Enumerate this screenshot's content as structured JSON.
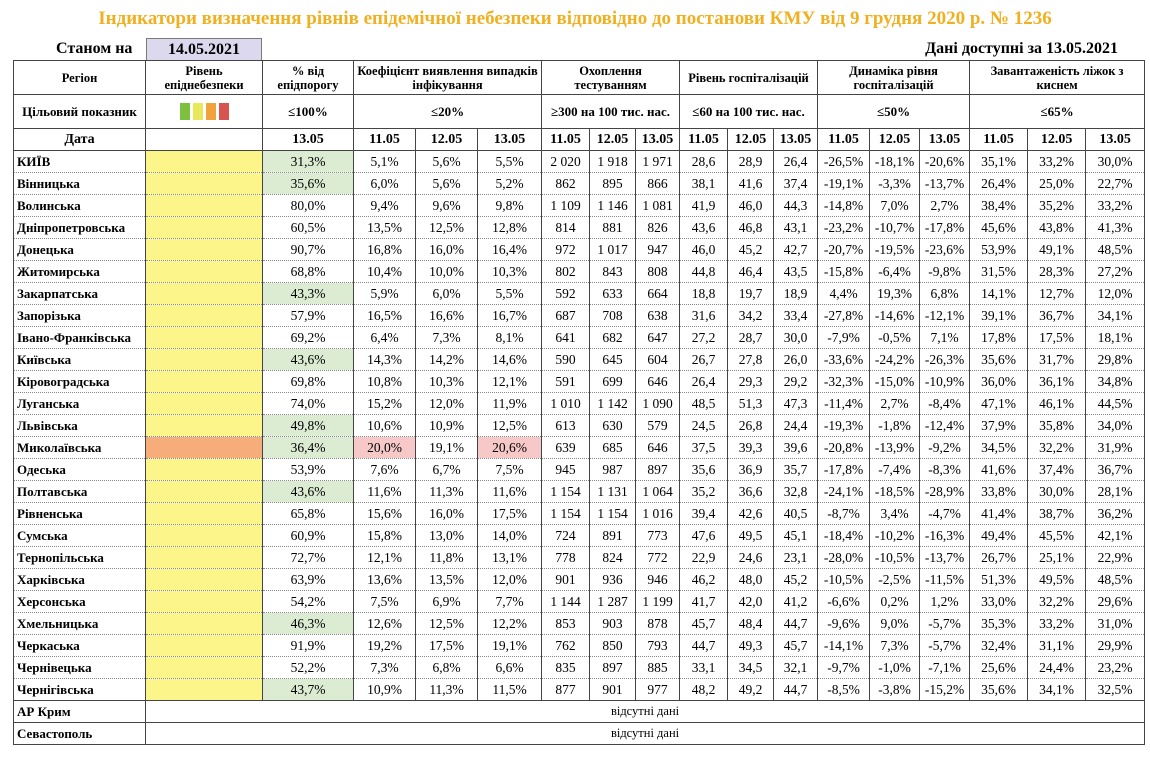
{
  "title": "Індикатори визначення рівнів епідемічної небезпеки відповідно до постанови КМУ від 9 грудня 2020 р. № 1236",
  "as_of_label": "Станом на",
  "as_of_date": "14.05.2021",
  "data_available": "Дані доступні за 13.05.2021",
  "headers": {
    "region": "Регіон",
    "level": "Рівень епіднебезпеки",
    "pct_threshold": "% від епідпорогу",
    "detection": "Коефіцієнт виявлення випадків інфікування",
    "testing": "Охоплення тестуванням",
    "hosp": "Рівень госпіталізацій",
    "hosp_dyn": "Динаміка рівня госпіталізацій",
    "oxygen": "Завантаженість ліжок з киснем"
  },
  "target": {
    "label": "Цільовий показник",
    "pct_threshold": "≤100%",
    "detection": "≤20%",
    "testing": "≥300 на 100 тис. нас.",
    "hosp": "≤60 на 100 тис. нас.",
    "hosp_dyn": "≤50%",
    "oxygen": "≤65%",
    "swatch_colors": [
      "#7fbf3f",
      "#e8e85a",
      "#f2a23c",
      "#d9534f"
    ]
  },
  "date_label": "Дата",
  "dates": [
    "13.05",
    "11.05",
    "12.05",
    "13.05",
    "11.05",
    "12.05",
    "13.05",
    "11.05",
    "12.05",
    "13.05",
    "11.05",
    "12.05",
    "13.05",
    "11.05",
    "12.05",
    "13.05"
  ],
  "colors": {
    "yellow": "#fbf58a",
    "orange": "#f6ad79",
    "green": "#dcecd3",
    "red": "#f7c8c8",
    "title": "#f0b020"
  },
  "rows": [
    {
      "region": "КИЇВ",
      "level": "yellow",
      "pct": "31,3%",
      "pct_hl": true,
      "det": [
        "5,1%",
        "5,6%",
        "5,5%"
      ],
      "test": [
        "2 020",
        "1 918",
        "1 971"
      ],
      "hosp": [
        "28,6",
        "28,9",
        "26,4"
      ],
      "dyn": [
        "-26,5%",
        "-18,1%",
        "-20,6%"
      ],
      "oxy": [
        "35,1%",
        "33,2%",
        "30,0%"
      ]
    },
    {
      "region": "Вінницька",
      "level": "yellow",
      "pct": "35,6%",
      "pct_hl": true,
      "det": [
        "6,0%",
        "5,6%",
        "5,2%"
      ],
      "test": [
        "862",
        "895",
        "866"
      ],
      "hosp": [
        "38,1",
        "41,6",
        "37,4"
      ],
      "dyn": [
        "-19,1%",
        "-3,3%",
        "-13,7%"
      ],
      "oxy": [
        "26,4%",
        "25,0%",
        "22,7%"
      ]
    },
    {
      "region": "Волинська",
      "level": "yellow",
      "pct": "80,0%",
      "pct_hl": false,
      "det": [
        "9,4%",
        "9,6%",
        "9,8%"
      ],
      "test": [
        "1 109",
        "1 146",
        "1 081"
      ],
      "hosp": [
        "41,9",
        "46,0",
        "44,3"
      ],
      "dyn": [
        "-14,8%",
        "7,0%",
        "2,7%"
      ],
      "oxy": [
        "38,4%",
        "35,2%",
        "33,2%"
      ]
    },
    {
      "region": "Дніпропетровська",
      "level": "yellow",
      "pct": "60,5%",
      "pct_hl": false,
      "det": [
        "13,5%",
        "12,5%",
        "12,8%"
      ],
      "test": [
        "814",
        "881",
        "826"
      ],
      "hosp": [
        "43,6",
        "46,8",
        "43,1"
      ],
      "dyn": [
        "-23,2%",
        "-10,7%",
        "-17,8%"
      ],
      "oxy": [
        "45,6%",
        "43,8%",
        "41,3%"
      ]
    },
    {
      "region": "Донецька",
      "level": "yellow",
      "pct": "90,7%",
      "pct_hl": false,
      "det": [
        "16,8%",
        "16,0%",
        "16,4%"
      ],
      "test": [
        "972",
        "1 017",
        "947"
      ],
      "hosp": [
        "46,0",
        "45,2",
        "42,7"
      ],
      "dyn": [
        "-20,7%",
        "-19,5%",
        "-23,6%"
      ],
      "oxy": [
        "53,9%",
        "49,1%",
        "48,5%"
      ]
    },
    {
      "region": "Житомирська",
      "level": "yellow",
      "pct": "68,8%",
      "pct_hl": false,
      "det": [
        "10,4%",
        "10,0%",
        "10,3%"
      ],
      "test": [
        "802",
        "843",
        "808"
      ],
      "hosp": [
        "44,8",
        "46,4",
        "43,5"
      ],
      "dyn": [
        "-15,8%",
        "-6,4%",
        "-9,8%"
      ],
      "oxy": [
        "31,5%",
        "28,3%",
        "27,2%"
      ]
    },
    {
      "region": "Закарпатська",
      "level": "yellow",
      "pct": "43,3%",
      "pct_hl": true,
      "det": [
        "5,9%",
        "6,0%",
        "5,5%"
      ],
      "test": [
        "592",
        "633",
        "664"
      ],
      "hosp": [
        "18,8",
        "19,7",
        "18,9"
      ],
      "dyn": [
        "4,4%",
        "19,3%",
        "6,8%"
      ],
      "oxy": [
        "14,1%",
        "12,7%",
        "12,0%"
      ]
    },
    {
      "region": "Запорізька",
      "level": "yellow",
      "pct": "57,9%",
      "pct_hl": false,
      "det": [
        "16,5%",
        "16,6%",
        "16,7%"
      ],
      "test": [
        "687",
        "708",
        "638"
      ],
      "hosp": [
        "31,6",
        "34,2",
        "33,4"
      ],
      "dyn": [
        "-27,8%",
        "-14,6%",
        "-12,1%"
      ],
      "oxy": [
        "39,1%",
        "36,7%",
        "34,1%"
      ]
    },
    {
      "region": "Івано-Франківська",
      "level": "yellow",
      "pct": "69,2%",
      "pct_hl": false,
      "det": [
        "6,4%",
        "7,3%",
        "8,1%"
      ],
      "test": [
        "641",
        "682",
        "647"
      ],
      "hosp": [
        "27,2",
        "28,7",
        "30,0"
      ],
      "dyn": [
        "-7,9%",
        "-0,5%",
        "7,1%"
      ],
      "oxy": [
        "17,8%",
        "17,5%",
        "18,1%"
      ]
    },
    {
      "region": "Київська",
      "level": "yellow",
      "pct": "43,6%",
      "pct_hl": true,
      "det": [
        "14,3%",
        "14,2%",
        "14,6%"
      ],
      "test": [
        "590",
        "645",
        "604"
      ],
      "hosp": [
        "26,7",
        "27,8",
        "26,0"
      ],
      "dyn": [
        "-33,6%",
        "-24,2%",
        "-26,3%"
      ],
      "oxy": [
        "35,6%",
        "31,7%",
        "29,8%"
      ]
    },
    {
      "region": "Кіровоградська",
      "level": "yellow",
      "pct": "69,8%",
      "pct_hl": false,
      "det": [
        "10,8%",
        "10,3%",
        "12,1%"
      ],
      "test": [
        "591",
        "699",
        "646"
      ],
      "hosp": [
        "26,4",
        "29,3",
        "29,2"
      ],
      "dyn": [
        "-32,3%",
        "-15,0%",
        "-10,9%"
      ],
      "oxy": [
        "36,0%",
        "36,1%",
        "34,8%"
      ]
    },
    {
      "region": "Луганська",
      "level": "yellow",
      "pct": "74,0%",
      "pct_hl": false,
      "det": [
        "15,2%",
        "12,0%",
        "11,9%"
      ],
      "test": [
        "1 010",
        "1 142",
        "1 090"
      ],
      "hosp": [
        "48,5",
        "51,3",
        "47,3"
      ],
      "dyn": [
        "-11,4%",
        "2,7%",
        "-8,4%"
      ],
      "oxy": [
        "47,1%",
        "46,1%",
        "44,5%"
      ]
    },
    {
      "region": "Львівська",
      "level": "yellow",
      "pct": "49,8%",
      "pct_hl": true,
      "det": [
        "10,6%",
        "10,9%",
        "12,5%"
      ],
      "test": [
        "613",
        "630",
        "579"
      ],
      "hosp": [
        "24,5",
        "26,8",
        "24,4"
      ],
      "dyn": [
        "-19,3%",
        "-1,8%",
        "-12,4%"
      ],
      "oxy": [
        "37,9%",
        "35,8%",
        "34,0%"
      ]
    },
    {
      "region": "Миколаївська",
      "level": "orange",
      "pct": "36,4%",
      "pct_hl": true,
      "det": [
        "20,0%",
        "19,1%",
        "20,6%"
      ],
      "det_hl": [
        true,
        false,
        true
      ],
      "test": [
        "639",
        "685",
        "646"
      ],
      "hosp": [
        "37,5",
        "39,3",
        "39,6"
      ],
      "dyn": [
        "-20,8%",
        "-13,9%",
        "-9,2%"
      ],
      "oxy": [
        "34,5%",
        "32,2%",
        "31,9%"
      ]
    },
    {
      "region": "Одеська",
      "level": "yellow",
      "pct": "53,9%",
      "pct_hl": false,
      "det": [
        "7,6%",
        "6,7%",
        "7,5%"
      ],
      "test": [
        "945",
        "987",
        "897"
      ],
      "hosp": [
        "35,6",
        "36,9",
        "35,7"
      ],
      "dyn": [
        "-17,8%",
        "-7,4%",
        "-8,3%"
      ],
      "oxy": [
        "41,6%",
        "37,4%",
        "36,7%"
      ]
    },
    {
      "region": "Полтавська",
      "level": "yellow",
      "pct": "43,6%",
      "pct_hl": true,
      "det": [
        "11,6%",
        "11,3%",
        "11,6%"
      ],
      "test": [
        "1 154",
        "1 131",
        "1 064"
      ],
      "hosp": [
        "35,2",
        "36,6",
        "32,8"
      ],
      "dyn": [
        "-24,1%",
        "-18,5%",
        "-28,9%"
      ],
      "oxy": [
        "33,8%",
        "30,0%",
        "28,1%"
      ]
    },
    {
      "region": "Рівненська",
      "level": "yellow",
      "pct": "65,8%",
      "pct_hl": false,
      "det": [
        "15,6%",
        "16,0%",
        "17,5%"
      ],
      "test": [
        "1 154",
        "1 154",
        "1 016"
      ],
      "hosp": [
        "39,4",
        "42,6",
        "40,5"
      ],
      "dyn": [
        "-8,7%",
        "3,4%",
        "-4,7%"
      ],
      "oxy": [
        "41,4%",
        "38,7%",
        "36,2%"
      ]
    },
    {
      "region": "Сумська",
      "level": "yellow",
      "pct": "60,9%",
      "pct_hl": false,
      "det": [
        "15,8%",
        "13,0%",
        "14,0%"
      ],
      "test": [
        "724",
        "891",
        "773"
      ],
      "hosp": [
        "47,6",
        "49,5",
        "45,1"
      ],
      "dyn": [
        "-18,4%",
        "-10,2%",
        "-16,3%"
      ],
      "oxy": [
        "49,4%",
        "45,5%",
        "42,1%"
      ]
    },
    {
      "region": "Тернопільська",
      "level": "yellow",
      "pct": "72,7%",
      "pct_hl": false,
      "det": [
        "12,1%",
        "11,8%",
        "13,1%"
      ],
      "test": [
        "778",
        "824",
        "772"
      ],
      "hosp": [
        "22,9",
        "24,6",
        "23,1"
      ],
      "dyn": [
        "-28,0%",
        "-10,5%",
        "-13,7%"
      ],
      "oxy": [
        "26,7%",
        "25,1%",
        "22,9%"
      ]
    },
    {
      "region": "Харківська",
      "level": "yellow",
      "pct": "63,9%",
      "pct_hl": false,
      "det": [
        "13,6%",
        "13,5%",
        "12,0%"
      ],
      "test": [
        "901",
        "936",
        "946"
      ],
      "hosp": [
        "46,2",
        "48,0",
        "45,2"
      ],
      "dyn": [
        "-10,5%",
        "-2,5%",
        "-11,5%"
      ],
      "oxy": [
        "51,3%",
        "49,5%",
        "48,5%"
      ]
    },
    {
      "region": "Херсонська",
      "level": "yellow",
      "pct": "54,2%",
      "pct_hl": false,
      "det": [
        "7,5%",
        "6,9%",
        "7,7%"
      ],
      "test": [
        "1 144",
        "1 287",
        "1 199"
      ],
      "hosp": [
        "41,7",
        "42,0",
        "41,2"
      ],
      "dyn": [
        "-6,6%",
        "0,2%",
        "1,2%"
      ],
      "oxy": [
        "33,0%",
        "32,2%",
        "29,6%"
      ]
    },
    {
      "region": "Хмельницька",
      "level": "yellow",
      "pct": "46,3%",
      "pct_hl": true,
      "det": [
        "12,6%",
        "12,5%",
        "12,2%"
      ],
      "test": [
        "853",
        "903",
        "878"
      ],
      "hosp": [
        "45,7",
        "48,4",
        "44,7"
      ],
      "dyn": [
        "-9,6%",
        "9,0%",
        "-5,7%"
      ],
      "oxy": [
        "35,3%",
        "33,2%",
        "31,0%"
      ]
    },
    {
      "region": "Черкаська",
      "level": "yellow",
      "pct": "91,9%",
      "pct_hl": false,
      "det": [
        "19,2%",
        "17,5%",
        "19,1%"
      ],
      "test": [
        "762",
        "850",
        "793"
      ],
      "hosp": [
        "44,7",
        "49,3",
        "45,7"
      ],
      "dyn": [
        "-14,1%",
        "7,3%",
        "-5,7%"
      ],
      "oxy": [
        "32,4%",
        "31,1%",
        "29,9%"
      ]
    },
    {
      "region": "Чернівецька",
      "level": "yellow",
      "pct": "52,2%",
      "pct_hl": false,
      "det": [
        "7,3%",
        "6,8%",
        "6,6%"
      ],
      "test": [
        "835",
        "897",
        "885"
      ],
      "hosp": [
        "33,1",
        "34,5",
        "32,1"
      ],
      "dyn": [
        "-9,7%",
        "-1,0%",
        "-7,1%"
      ],
      "oxy": [
        "25,6%",
        "24,4%",
        "23,2%"
      ]
    },
    {
      "region": "Чернігівська",
      "level": "yellow",
      "pct": "43,7%",
      "pct_hl": true,
      "det": [
        "10,9%",
        "11,3%",
        "11,5%"
      ],
      "test": [
        "877",
        "901",
        "977"
      ],
      "hosp": [
        "48,2",
        "49,2",
        "44,7"
      ],
      "dyn": [
        "-8,5%",
        "-3,8%",
        "-15,2%"
      ],
      "oxy": [
        "35,6%",
        "34,1%",
        "32,5%"
      ]
    }
  ],
  "missing_rows": [
    {
      "region": "АР Крим",
      "note": "відсутні дані"
    },
    {
      "region": "Севастополь",
      "note": "відсутні дані"
    }
  ]
}
